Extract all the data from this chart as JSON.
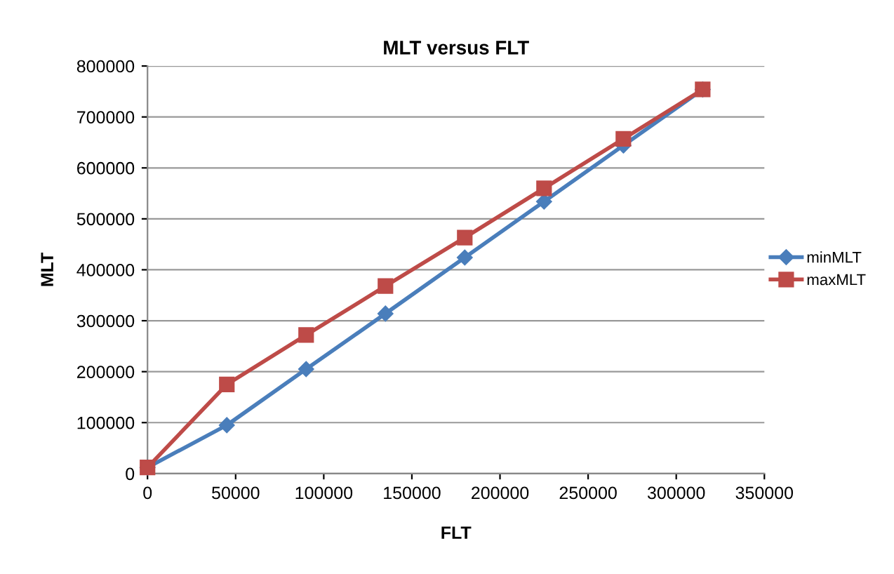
{
  "chart_data": {
    "type": "line",
    "title": "MLT versus FLT",
    "xlabel": "FLT",
    "ylabel": "MLT",
    "x": [
      0,
      45000,
      90000,
      135000,
      180000,
      225000,
      270000,
      315000
    ],
    "series": [
      {
        "name": "minMLT",
        "color": "#4a7ebb",
        "marker": "diamond",
        "values": [
          12000,
          95000,
          205000,
          314000,
          424000,
          534000,
          644000,
          754000
        ]
      },
      {
        "name": "maxMLT",
        "color": "#be4b48",
        "marker": "square",
        "values": [
          12000,
          175000,
          272000,
          368000,
          463000,
          560000,
          657000,
          754000
        ]
      }
    ],
    "xlim": [
      0,
      350000
    ],
    "xticks": [
      0,
      50000,
      100000,
      150000,
      200000,
      250000,
      300000,
      350000
    ],
    "ylim": [
      0,
      800000
    ],
    "yticks": [
      0,
      100000,
      200000,
      300000,
      400000,
      500000,
      600000,
      700000,
      800000
    ],
    "grid": "y",
    "legend": "right"
  }
}
